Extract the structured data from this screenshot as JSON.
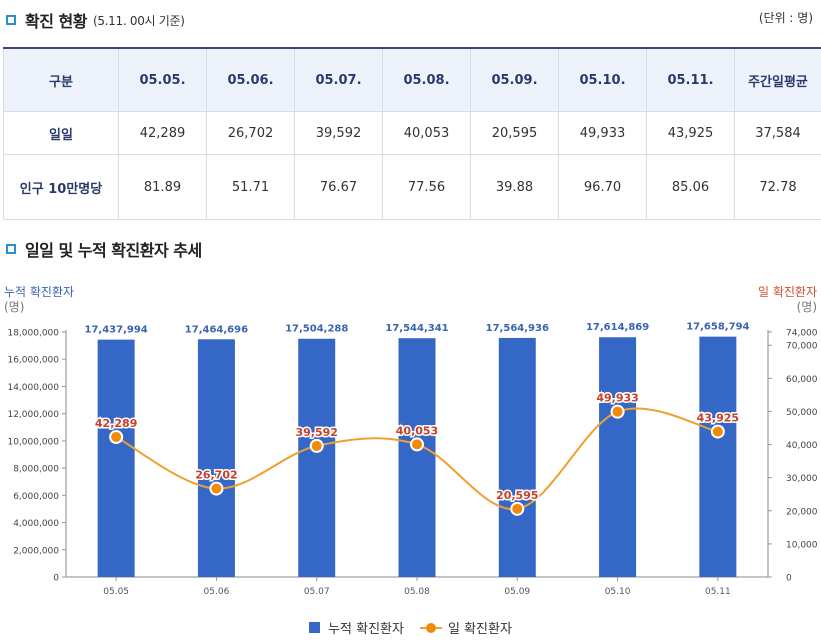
{
  "section1": {
    "title": "확진 현황",
    "subtitle": "(5.11. 00시 기준)",
    "unit": "(단위 : 명)"
  },
  "table": {
    "header": [
      "구분",
      "05.05.",
      "05.06.",
      "05.07.",
      "05.08.",
      "05.09.",
      "05.10.",
      "05.11.",
      "주간일평균"
    ],
    "rows": [
      {
        "label": "일일",
        "values": [
          "42,289",
          "26,702",
          "39,592",
          "40,053",
          "20,595",
          "49,933",
          "43,925",
          "37,584"
        ]
      },
      {
        "label": "인구 10만명당",
        "values": [
          "81.89",
          "51.71",
          "76.67",
          "77.56",
          "39.88",
          "96.70",
          "85.06",
          "72.78"
        ]
      }
    ]
  },
  "section2": {
    "title": "일일 및 누적 확진환자 추세"
  },
  "chart_data": {
    "type": "bar",
    "title": "일일 및 누적 확진환자 추세",
    "categories": [
      "05.05",
      "05.06",
      "05.07",
      "05.08",
      "05.09",
      "05.10",
      "05.11"
    ],
    "series": [
      {
        "name": "누적 확진환자",
        "type": "bar",
        "axis": "left",
        "color": "#3567c7",
        "values": [
          17437994,
          17464696,
          17504288,
          17544341,
          17564936,
          17614869,
          17658794
        ],
        "labels": [
          "17,437,994",
          "17,464,696",
          "17,504,288",
          "17,544,341",
          "17,564,936",
          "17,614,869",
          "17,658,794"
        ]
      },
      {
        "name": "일 확진환자",
        "type": "line",
        "axis": "right",
        "color": "#f18a0a",
        "values": [
          42289,
          26702,
          39592,
          40053,
          20595,
          49933,
          43925
        ],
        "labels": [
          "42,289",
          "26,702",
          "39,592",
          "40,053",
          "20,595",
          "49,933",
          "43,925"
        ]
      }
    ],
    "y_left": {
      "label": "누적 확진환자",
      "unit": "(명)",
      "min": 0,
      "max": 18000000,
      "ticks": [
        0,
        2000000,
        4000000,
        6000000,
        8000000,
        10000000,
        12000000,
        14000000,
        16000000,
        18000000
      ],
      "tick_labels": [
        "0",
        "2,000,000",
        "4,000,000",
        "6,000,000",
        "8,000,000",
        "10,000,000",
        "12,000,000",
        "14,000,000",
        "16,000,000",
        "18,000,000"
      ]
    },
    "y_right": {
      "label": "일 확진환자",
      "unit": "(명)",
      "min": 0,
      "max": 74000,
      "ticks": [
        0,
        10000,
        20000,
        30000,
        40000,
        50000,
        60000,
        70000,
        74000
      ],
      "tick_labels": [
        "0",
        "10,000",
        "20,000",
        "30,000",
        "40,000",
        "50,000",
        "60,000",
        "70,000",
        "74,000"
      ]
    },
    "legend": [
      "누적 확진환자",
      "일 확진환자"
    ],
    "legend_position": "bottom"
  }
}
